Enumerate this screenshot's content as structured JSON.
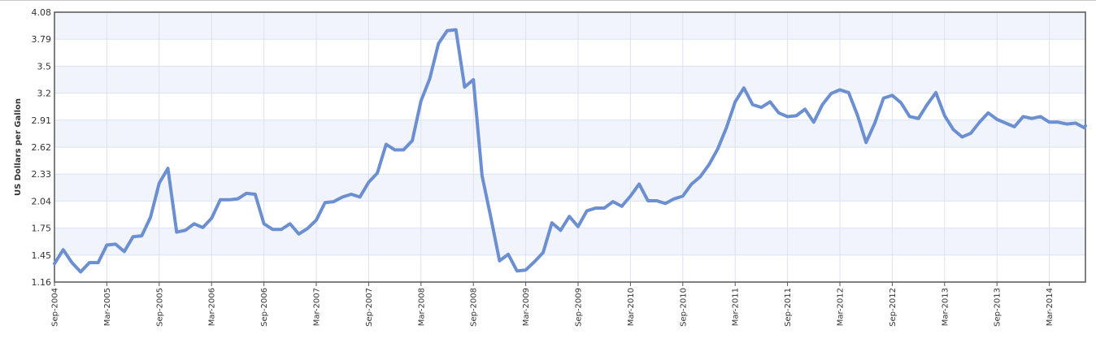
{
  "chart_data": {
    "type": "line",
    "title": "",
    "xlabel": "",
    "ylabel": "US Dollars per Gallon",
    "ylim": [
      1.16,
      4.08
    ],
    "yticks": [
      "1.16",
      "1.45",
      "1.75",
      "2.04",
      "2.33",
      "2.62",
      "2.91",
      "3.2",
      "3.5",
      "3.79",
      "4.08"
    ],
    "xticks": [
      "Sep-2004",
      "Mar-2005",
      "Sep-2005",
      "Mar-2006",
      "Sep-2006",
      "Mar-2007",
      "Sep-2007",
      "Mar-2008",
      "Sep-2008",
      "Mar-2009",
      "Sep-2009",
      "Mar-2010",
      "Sep-2010",
      "Mar-2011",
      "Sep-2011",
      "Mar-2012",
      "Sep-2012",
      "Mar-2013",
      "Sep-2013",
      "Mar-2014"
    ],
    "grid": true,
    "legend": "none",
    "line_color": "#6b8fd0",
    "band_color": "#f2f4fc",
    "grid_color": "#dbe2f4",
    "series": [
      {
        "values": [
          1.36,
          1.51,
          1.37,
          1.27,
          1.37,
          1.37,
          1.56,
          1.57,
          1.49,
          1.65,
          1.66,
          1.86,
          2.23,
          2.39,
          1.7,
          1.72,
          1.79,
          1.75,
          1.85,
          2.05,
          2.05,
          2.06,
          2.12,
          2.11,
          1.79,
          1.73,
          1.73,
          1.79,
          1.68,
          1.74,
          1.83,
          2.02,
          2.03,
          2.08,
          2.11,
          2.08,
          2.24,
          2.34,
          2.65,
          2.59,
          2.59,
          2.69,
          3.12,
          3.36,
          3.74,
          3.88,
          3.89,
          3.27,
          3.35,
          2.31,
          1.86,
          1.39,
          1.46,
          1.28,
          1.29,
          1.38,
          1.48,
          1.8,
          1.72,
          1.87,
          1.76,
          1.93,
          1.96,
          1.96,
          2.03,
          1.98,
          2.09,
          2.22,
          2.04,
          2.04,
          2.01,
          2.06,
          2.09,
          2.22,
          2.3,
          2.43,
          2.6,
          2.83,
          3.11,
          3.26,
          3.08,
          3.05,
          3.11,
          2.99,
          2.95,
          2.96,
          3.03,
          2.89,
          3.08,
          3.2,
          3.24,
          3.21,
          2.97,
          2.67,
          2.88,
          3.15,
          3.18,
          3.1,
          2.95,
          2.93,
          3.08,
          3.21,
          2.96,
          2.81,
          2.73,
          2.77,
          2.89,
          2.99,
          2.92,
          2.88,
          2.84,
          2.95,
          2.93,
          2.95,
          2.89,
          2.89,
          2.87,
          2.88,
          2.83,
          2.85
        ]
      }
    ]
  }
}
